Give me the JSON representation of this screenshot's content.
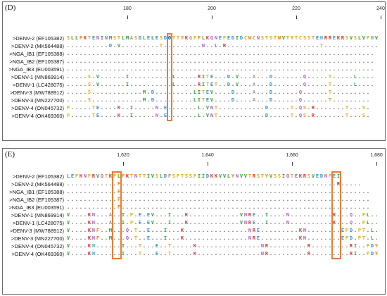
{
  "panels": [
    {
      "tag": "(D)",
      "ruler": [
        {
          "col": 14,
          "label": "180"
        },
        {
          "col": 34,
          "label": "200"
        },
        {
          "col": 54,
          "label": "220"
        },
        {
          "col": 74,
          "label": "240"
        }
      ],
      "highlight_cols": [
        [
          24,
          24
        ]
      ],
      "rows": [
        {
          "label": ">DENV-2 (EF105382)",
          "seq": "SLLFKTENINMSTLMASDLELESDOTTYKGPFLKQNEPEDIDCWCNSTSTWVTYTCSSTEHRREKRSVSLVPHVM"
        },
        {
          "label": ">DENV-2 (MK564488)",
          "seq": "..........D.V.........T.........N..L.R......................T.............."
        },
        {
          "label": ">NGA_IB1 (EF105388)",
          "seq": "........................................................................."
        },
        {
          "label": ">NGA_IB2 (EF105387)",
          "seq": "........................................................................."
        },
        {
          "label": ">NGA_IB3 (EU003591)",
          "seq": "........................................................................."
        },
        {
          "label": ">DENV-1 (MN869914)",
          "seq": ".....S.V......I..........L.....RITE...D.V...A...D.......Q.....T.....L...."
        },
        {
          "label": ">DENV-1 (LC428075)",
          "seq": ".....S.V......I..........L.....RITET..D.V...A...D.......Q.....T.....L...."
        },
        {
          "label": ">DENV-3 (MW788912)",
          "seq": ".....S............M.D.........LITEV....D....A...D......Q......T........."
        },
        {
          "label": ">DENV-3 (MN227700)",
          "seq": ".....S............M.D.........LITEV....D....A...D......Q......T........."
        },
        {
          "label": ">DENV-4 (ON045732)",
          "seq": "P.....TE....K..I.....N.E.......L.VNT...........D.....T.QS.R.......T...S."
        },
        {
          "label": ">DENV-4 (OK469360)",
          "seq": "P.....TE....K..I.....N.E.......L.VNT...........D.....T.QS.R.......T...S."
        }
      ]
    },
    {
      "tag": "(E)",
      "ruler": [
        {
          "col": 13,
          "label": "1,620"
        },
        {
          "col": 33,
          "label": "1,640"
        },
        {
          "col": 53,
          "label": "1,660"
        },
        {
          "col": 73,
          "label": "1,680"
        }
      ],
      "highlight_cols": [
        [
          11,
          12
        ],
        [
          63,
          64
        ]
      ],
      "rows": [
        {
          "label": ">DENV-2 (EF105382)",
          "seq": "LEPKNPRVQTKPLFKTNTTIVSLDFSPTSSPIIDKKVVLYNVVTRSTYVSSIQTEKRSVEDNPEI"
        },
        {
          "label": ">DENV-2 (MK564488)",
          "seq": "............F...................................................R....."
        },
        {
          "label": ">NGA_IB1 (EF105388)",
          "seq": "............F..........................................................."
        },
        {
          "label": ">NGA_IB2 (EF105387)",
          "seq": "............F..........................................................."
        },
        {
          "label": ">NGA_IB3 (EU003591)",
          "seq": "............F..........................................................."
        },
        {
          "label": ">DENV-1 (MN869914)",
          "seq": "V....KN...A..I.P.E.EV...I...K............VNRE..I....N..........K...Q..PL.."
        },
        {
          "label": ">DENV-1 (LC428075)",
          "seq": "V....KN...A..I.P.E.EV...I...K............VNRE..I....N..........K...Q..PL.."
        },
        {
          "label": ">DENV-3 (MW788912)",
          "seq": "V....KNF..M...Q.T..E...I...K...............NRE.........KN........EPD.PT.L."
        },
        {
          "label": ">DENV-3 (MN227700)",
          "seq": "V....KNF..M...Q.T..E...I...K...............NRE.........KN........EPD.PT.L."
        },
        {
          "label": ">DENV-4 (ON045732)",
          "seq": "V....KH......I...T...E..T.....K...............NR.........R.........RI..PDY.V"
        },
        {
          "label": ">DENV-4 (OK469360)",
          "seq": "V....KH......I...T...E..T.....K...............NR.........R.........RI..PDY.V"
        }
      ]
    }
  ],
  "residue_colors": {
    "A": "#9a9a9a",
    "C": "#d8a800",
    "D": "#2c8fd8",
    "E": "#2c8fd8",
    "F": "#ff7700",
    "G": "#9a9a9a",
    "H": "#3aa8d0",
    "I": "#2e9e3a",
    "K": "#e03030",
    "L": "#2e9e3a",
    "M": "#2e9e3a",
    "N": "#b060d0",
    "P": "#d8b800",
    "Q": "#b060d0",
    "R": "#e03030",
    "S": "#f0a000",
    "T": "#f0a000",
    "V": "#2e9e3a",
    "W": "#ff7700",
    "Y": "#ff7700",
    ".": "#555555",
    "-": "#555555"
  },
  "highlight_color": "#ee7a30"
}
